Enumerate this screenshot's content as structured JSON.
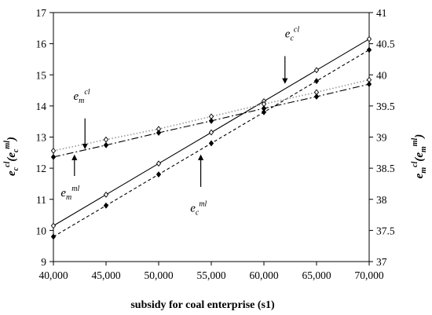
{
  "chart_data": {
    "type": "line",
    "xlabel": "subsidy for coal enterprise (s1)",
    "x": [
      40000,
      45000,
      50000,
      55000,
      60000,
      65000,
      70000
    ],
    "x_tick_labels": [
      "40,000",
      "45,000",
      "50,000",
      "55,000",
      "60,000",
      "65,000",
      "70,000"
    ],
    "xlim": [
      40000,
      70000
    ],
    "left_axis": {
      "label_base": "e",
      "label_sub": "c",
      "label_sup1": "cl",
      "label_mid": "(e",
      "label_sup2": "ml",
      "label_end": ")",
      "ylim": [
        9,
        17
      ],
      "ticks": [
        "9",
        "10",
        "11",
        "12",
        "13",
        "14",
        "15",
        "16",
        "17"
      ]
    },
    "right_axis": {
      "label_base": "e",
      "label_sub": "m",
      "label_sup1": "cl",
      "label_mid": "(e",
      "label_sup2": "ml",
      "label_end": ")",
      "ylim": [
        37,
        41
      ],
      "ticks": [
        "37",
        "37.5",
        "38",
        "38.5",
        "39",
        "39.5",
        "40",
        "40.5",
        "41"
      ]
    },
    "series": [
      {
        "axis": "left",
        "marker": "open-diamond",
        "line": "solid",
        "values": [
          10.15,
          11.15,
          12.15,
          13.15,
          14.15,
          15.15,
          16.15
        ]
      },
      {
        "axis": "left",
        "marker": "filled-diamond",
        "line": "dashed",
        "values": [
          9.8,
          10.8,
          11.8,
          12.8,
          13.8,
          14.8,
          15.8
        ]
      },
      {
        "axis": "right",
        "marker": "open-diamond",
        "line": "dotted",
        "values": [
          38.78,
          38.96,
          39.13,
          39.33,
          39.53,
          39.72,
          39.92
        ]
      },
      {
        "axis": "right",
        "marker": "filled-diamond",
        "line": "dash-dot",
        "values": [
          38.68,
          38.87,
          39.07,
          39.26,
          39.46,
          39.65,
          39.85
        ]
      }
    ],
    "annotations": [
      {
        "base": "e",
        "sub": "c",
        "sup": "cl",
        "at": [
          62000,
          16.2
        ],
        "arrow": "down",
        "arrow_from": [
          62000,
          15.6
        ],
        "arrow_to": [
          62000,
          14.8
        ]
      },
      {
        "base": "e",
        "sub": "m",
        "sup": "cl",
        "at": [
          41900,
          14.2
        ],
        "arrow": "down",
        "arrow_from": [
          43000,
          13.6
        ],
        "arrow_to": [
          43000,
          12.7
        ]
      },
      {
        "base": "e",
        "sub": "m",
        "sup": "ml",
        "at": [
          40700,
          11.1
        ],
        "arrow": "up",
        "arrow_from": [
          42000,
          11.75
        ],
        "arrow_to": [
          42000,
          12.35
        ]
      },
      {
        "base": "e",
        "sub": "c",
        "sup": "ml",
        "at": [
          53000,
          10.6
        ],
        "arrow": "up",
        "arrow_from": [
          54000,
          11.4
        ],
        "arrow_to": [
          54000,
          12.35
        ]
      }
    ],
    "colors": {
      "line": "#000000",
      "dotted": "#9a9a9a",
      "marker_open_fill": "#ffffff"
    }
  }
}
